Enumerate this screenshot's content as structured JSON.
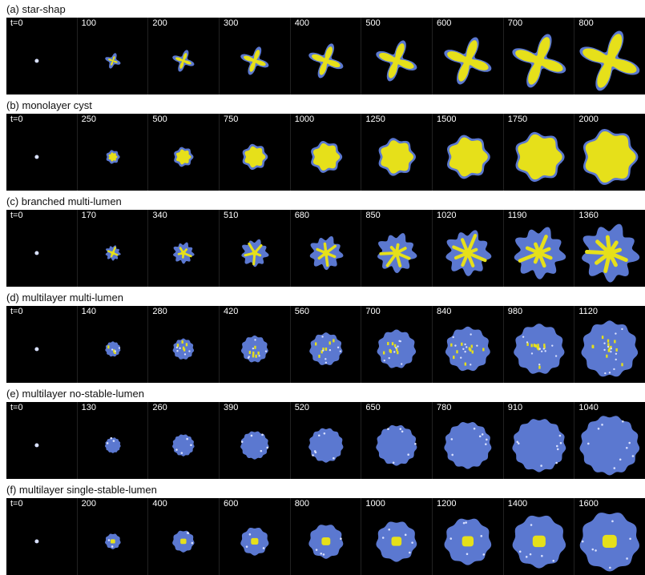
{
  "panels": [
    {
      "title": "(a) star-shap",
      "kind": "star",
      "frames": [
        "t=0",
        "100",
        "200",
        "300",
        "400",
        "500",
        "600",
        "700",
        "800"
      ]
    },
    {
      "title": "(b) monolayer cyst",
      "kind": "cyst",
      "frames": [
        "t=0",
        "250",
        "500",
        "750",
        "1000",
        "1250",
        "1500",
        "1750",
        "2000"
      ]
    },
    {
      "title": "(c) branched multi-lumen",
      "kind": "branched",
      "frames": [
        "t=0",
        "170",
        "340",
        "510",
        "680",
        "850",
        "1020",
        "1190",
        "1360"
      ]
    },
    {
      "title": "(d) multilayer multi-lumen",
      "kind": "multi",
      "frames": [
        "t=0",
        "140",
        "280",
        "420",
        "560",
        "700",
        "840",
        "980",
        "1120"
      ]
    },
    {
      "title": "(e) multilayer no-stable-lumen",
      "kind": "nolumen",
      "frames": [
        "t=0",
        "130",
        "260",
        "390",
        "520",
        "650",
        "780",
        "910",
        "1040"
      ]
    },
    {
      "title": "(f) multilayer single-stable-lumen",
      "kind": "single",
      "frames": [
        "t=0",
        "200",
        "400",
        "600",
        "800",
        "1000",
        "1200",
        "1400",
        "1600"
      ]
    }
  ],
  "colors": {
    "background": "#000000",
    "cell": "#5b78d0",
    "lumen": "#e6e01a",
    "dot": "#d8e0ff"
  }
}
